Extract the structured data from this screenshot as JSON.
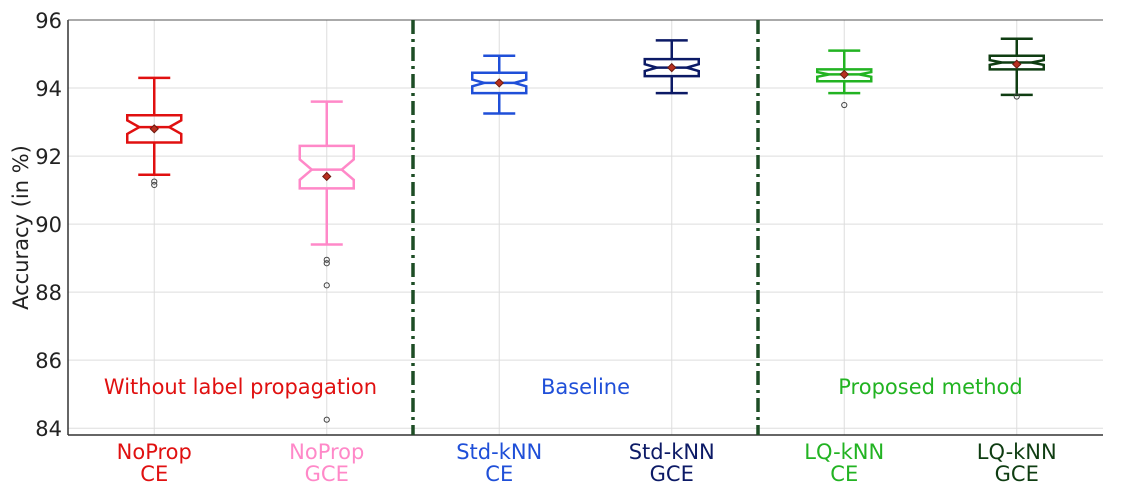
{
  "chart_data": {
    "type": "box",
    "ylabel": "Accuracy (in %)",
    "ylim": [
      83.8,
      96
    ],
    "yticks": [
      84,
      86,
      88,
      90,
      92,
      94,
      96
    ],
    "grid": true,
    "groups": [
      {
        "label": "Without label propagation",
        "color": "#e01010"
      },
      {
        "label": "Baseline",
        "color": "#1f4fd8"
      },
      {
        "label": "Proposed method",
        "color": "#22b322"
      }
    ],
    "boxes": [
      {
        "label_line1": "NoProp",
        "label_line2": "CE",
        "color": "#e01010",
        "whisker_low": 91.45,
        "q1": 92.4,
        "median": 92.85,
        "q3": 93.2,
        "whisker_high": 94.3,
        "mean": 92.8,
        "notch_low": 92.65,
        "notch_high": 93.05,
        "outliers": [
          91.25,
          91.15
        ]
      },
      {
        "label_line1": "NoProp",
        "label_line2": "GCE",
        "color": "#ff88c8",
        "whisker_low": 89.4,
        "q1": 91.05,
        "median": 91.6,
        "q3": 92.3,
        "whisker_high": 93.6,
        "mean": 91.4,
        "notch_low": 91.3,
        "notch_high": 91.9,
        "outliers": [
          88.95,
          88.85,
          88.2,
          84.25
        ]
      },
      {
        "label_line1": "Std-kNN",
        "label_line2": "CE",
        "color": "#1f4fd8",
        "whisker_low": 93.25,
        "q1": 93.85,
        "median": 94.15,
        "q3": 94.45,
        "whisker_high": 94.95,
        "mean": 94.15,
        "notch_low": 94.05,
        "notch_high": 94.25,
        "outliers": []
      },
      {
        "label_line1": "Std-kNN",
        "label_line2": "GCE",
        "color": "#0c1a66",
        "whisker_low": 93.85,
        "q1": 94.35,
        "median": 94.6,
        "q3": 94.85,
        "whisker_high": 95.4,
        "mean": 94.6,
        "notch_low": 94.5,
        "notch_high": 94.7,
        "outliers": []
      },
      {
        "label_line1": "LQ-kNN",
        "label_line2": "CE",
        "color": "#22b322",
        "whisker_low": 93.85,
        "q1": 94.2,
        "median": 94.4,
        "q3": 94.55,
        "whisker_high": 95.1,
        "mean": 94.4,
        "notch_low": 94.33,
        "notch_high": 94.47,
        "outliers": [
          93.5
        ]
      },
      {
        "label_line1": "LQ-kNN",
        "label_line2": "GCE",
        "color": "#0f3d12",
        "whisker_low": 93.8,
        "q1": 94.55,
        "median": 94.75,
        "q3": 94.95,
        "whisker_high": 95.45,
        "mean": 94.7,
        "notch_low": 94.68,
        "notch_high": 94.82,
        "outliers": [
          93.75
        ]
      }
    ],
    "dividers_after": [
      2,
      4
    ],
    "divider_color": "#1d4d25",
    "mean_marker_color": "#b83020"
  }
}
